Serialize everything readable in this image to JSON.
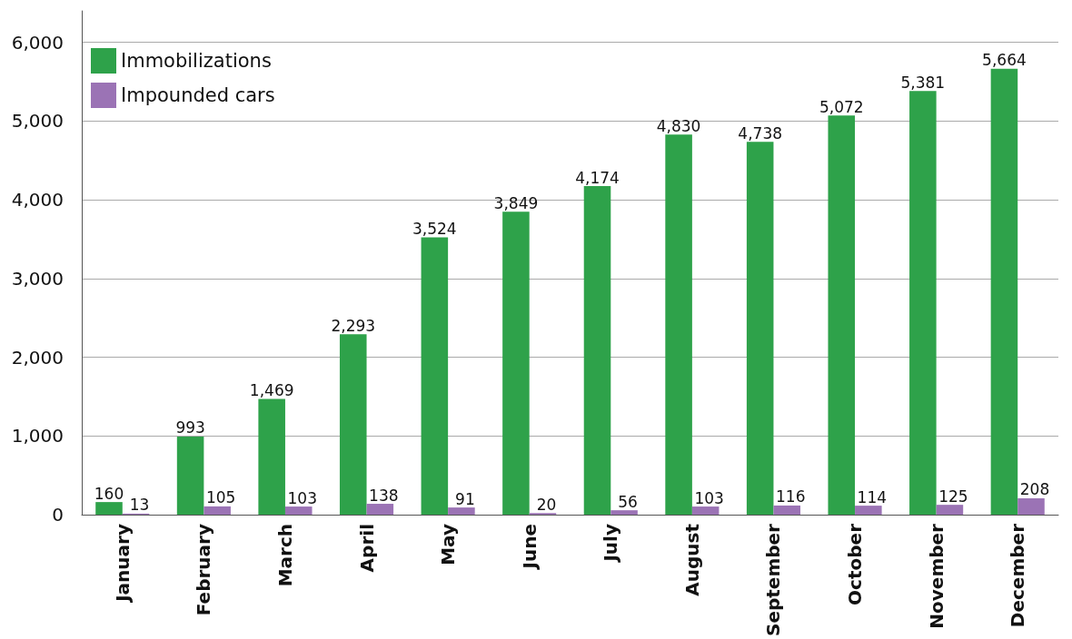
{
  "chart_data": {
    "type": "bar",
    "categories": [
      "January",
      "February",
      "March",
      "April",
      "May",
      "June",
      "July",
      "August",
      "September",
      "October",
      "November",
      "December"
    ],
    "series": [
      {
        "name": "Immobilizations",
        "color": "#2ea24a",
        "values": [
          160,
          993,
          1469,
          2293,
          3524,
          3849,
          4174,
          4830,
          4738,
          5072,
          5381,
          5664
        ],
        "value_labels": [
          "160",
          "993",
          "1,469",
          "2,293",
          "3,524",
          "3,849",
          "4,174",
          "4,830",
          "4,738",
          "5,072",
          "5,381",
          "5,664"
        ]
      },
      {
        "name": "Impounded cars",
        "color": "#9b73b5",
        "values": [
          13,
          105,
          103,
          138,
          91,
          20,
          56,
          103,
          116,
          114,
          125,
          208
        ],
        "value_labels": [
          "13",
          "105",
          "103",
          "138",
          "91",
          "20",
          "56",
          "103",
          "116",
          "114",
          "125",
          "208"
        ]
      }
    ],
    "ylim": [
      0,
      6400
    ],
    "yticks": [
      0,
      {
        "value": 1000,
        "label": "1,000"
      },
      {
        "value": 2000,
        "label": "2,000"
      },
      {
        "value": 3000,
        "label": "3,000"
      },
      {
        "value": 4000,
        "label": "4,000"
      },
      {
        "value": 5000,
        "label": "5,000"
      },
      {
        "value": 6000,
        "label": "6,000"
      }
    ],
    "grid": "y",
    "legend": "top left"
  }
}
